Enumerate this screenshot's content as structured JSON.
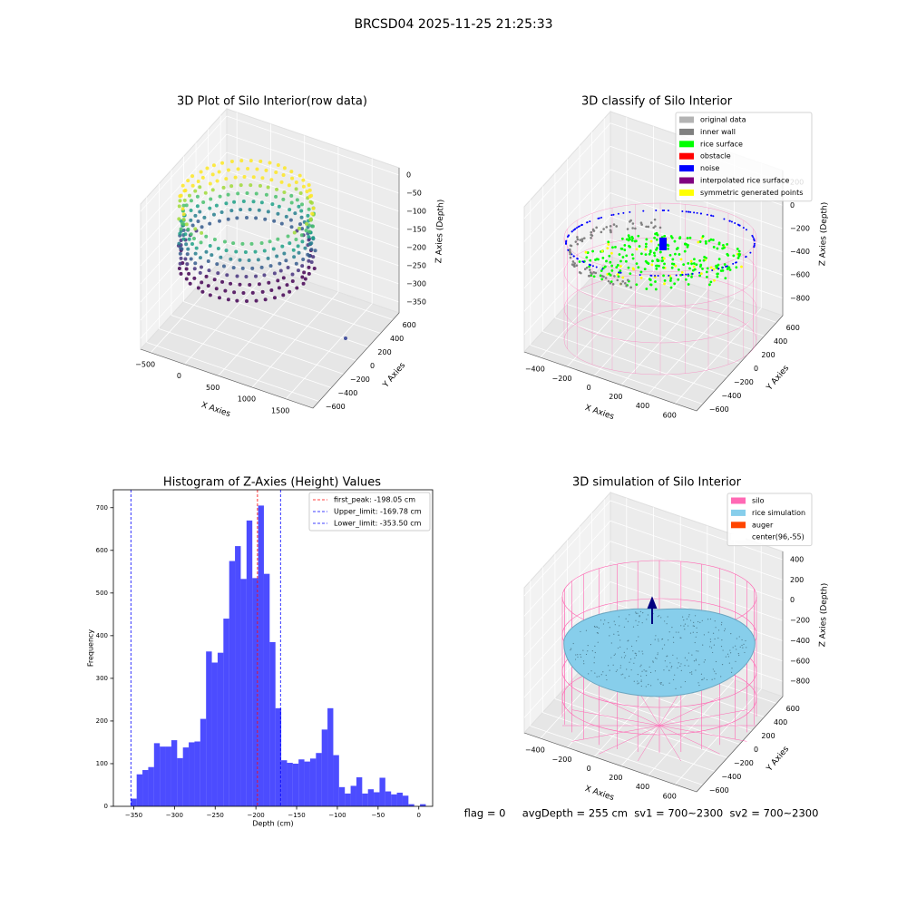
{
  "title": "BRCSD04 2025-11-25 21:25:33",
  "footer": "flag = 0     avgDepth = 255 cm  sv1 = 700~2300  sv2 = 700~2300",
  "chart_data": [
    {
      "type": "scatter3d",
      "title": "3D Plot of Silo Interior(row data)",
      "xlabel": "X Axies",
      "ylabel": "Y Axies",
      "zlabel": "Z Axies (Depth)",
      "xlim": [
        -650,
        1900
      ],
      "ylim": [
        -700,
        700
      ],
      "zlim": [
        -380,
        20
      ],
      "xticks": [
        {
          "value": -500,
          "label": "−500"
        },
        0,
        500,
        1000,
        1500
      ],
      "yticks": [
        {
          "value": -600,
          "label": "−600"
        },
        {
          "value": -400,
          "label": "−400"
        },
        {
          "value": -200,
          "label": "−200"
        },
        0,
        200,
        400,
        600
      ],
      "zticks": [
        0,
        {
          "value": -50,
          "label": "−50"
        },
        {
          "value": -100,
          "label": "−100"
        },
        {
          "value": -150,
          "label": "−150"
        },
        {
          "value": -200,
          "label": "−200"
        },
        {
          "value": -250,
          "label": "−250"
        },
        {
          "value": -300,
          "label": "−300"
        },
        {
          "value": -350,
          "label": "−350"
        }
      ]
    },
    {
      "type": "scatter3d",
      "title": "3D classify of Silo Interior",
      "xlabel": "X Axies",
      "ylabel": "Y Axies",
      "zlabel": "Z Axies (Depth)",
      "xlim": [
        -520,
        760
      ],
      "ylim": [
        -700,
        700
      ],
      "zlim": [
        -950,
        300
      ],
      "xticks": [
        {
          "value": -400,
          "label": "−400"
        },
        {
          "value": -200,
          "label": "−200"
        },
        0,
        200,
        400,
        600
      ],
      "yticks": [
        {
          "value": -600,
          "label": "−600"
        },
        {
          "value": -400,
          "label": "−400"
        },
        {
          "value": -200,
          "label": "−200"
        },
        0,
        200,
        400,
        600
      ],
      "zticks": [
        200,
        0,
        {
          "value": -200,
          "label": "−200"
        },
        {
          "value": -400,
          "label": "−400"
        },
        {
          "value": -600,
          "label": "−600"
        },
        {
          "value": -800,
          "label": "−800"
        }
      ],
      "legend": [
        {
          "name": "original data",
          "color": "#b3b3b3"
        },
        {
          "name": "inner wall",
          "color": "#808080"
        },
        {
          "name": "rice surface",
          "color": "#00ff00"
        },
        {
          "name": "obstacle",
          "color": "#ff0000"
        },
        {
          "name": "noise",
          "color": "#0000ff"
        },
        {
          "name": "interpolated rice surface",
          "color": "#800080"
        },
        {
          "name": "symmetric generated points",
          "color": "#ffff00"
        }
      ]
    },
    {
      "type": "histogram",
      "title": "Histogram of Z-Axies (Height) Values",
      "xlabel": "Depth (cm)",
      "ylabel": "Frequency",
      "color": "#0000ff",
      "bins": [
        -353.5,
        -346.4,
        -339.3,
        -332.2,
        -325.1,
        -318.0,
        -310.9,
        -303.8,
        -296.7,
        -289.6,
        -282.5,
        -275.4,
        -268.3,
        -261.2,
        -254.1,
        -247.0,
        -239.9,
        -232.8,
        -225.7,
        -218.6,
        -211.5,
        -204.4,
        -197.3,
        -190.2,
        -183.1,
        -176.0,
        -168.9,
        -161.8,
        -154.7,
        -147.6,
        -140.5,
        -133.4,
        -126.3,
        -119.2,
        -112.1,
        -105.0,
        -97.9,
        -90.8,
        -83.7,
        -76.6,
        -69.5,
        -62.4,
        -55.3,
        -48.2,
        -41.1,
        -34.0,
        -26.9,
        -19.8,
        -12.7,
        -5.6,
        1.5,
        8.6
      ],
      "values": [
        18,
        75,
        85,
        92,
        148,
        140,
        140,
        155,
        113,
        138,
        150,
        152,
        205,
        363,
        337,
        360,
        440,
        575,
        610,
        533,
        670,
        535,
        705,
        545,
        385,
        230,
        108,
        102,
        100,
        110,
        105,
        112,
        125,
        180,
        230,
        120,
        45,
        30,
        48,
        68,
        30,
        40,
        33,
        67,
        35,
        28,
        32,
        25,
        5,
        0,
        5
      ],
      "xlim": [
        -375,
        17
      ],
      "ylim": [
        0,
        742
      ],
      "xticks": [
        {
          "value": -350,
          "label": "−350"
        },
        {
          "value": -300,
          "label": "−300"
        },
        {
          "value": -250,
          "label": "−250"
        },
        {
          "value": -200,
          "label": "−200"
        },
        {
          "value": -150,
          "label": "−150"
        },
        {
          "value": -100,
          "label": "−100"
        },
        {
          "value": -50,
          "label": "−50"
        },
        0
      ],
      "yticks": [
        0,
        100,
        200,
        300,
        400,
        500,
        600,
        700
      ],
      "lines": [
        {
          "name": "first_peak: -198.05 cm",
          "value": -198.05,
          "color": "#ff0000"
        },
        {
          "name": "Upper_limit: -169.78 cm",
          "value": -169.78,
          "color": "#0000ff"
        },
        {
          "name": "Lower_limit: -353.50 cm",
          "value": -353.5,
          "color": "#0000ff"
        }
      ],
      "legend_position": "upper right"
    },
    {
      "type": "surface3d",
      "title": "3D simulation of Silo Interior",
      "xlabel": "X Axies",
      "ylabel": "Y Axies",
      "zlabel": "Z Axies (Depth)",
      "xlim": [
        -520,
        760
      ],
      "ylim": [
        -700,
        700
      ],
      "zlim": [
        -950,
        480
      ],
      "xticks": [
        {
          "value": -400,
          "label": "−400"
        },
        {
          "value": -200,
          "label": "−200"
        },
        0,
        200,
        400,
        600
      ],
      "yticks": [
        {
          "value": -600,
          "label": "−600"
        },
        {
          "value": -400,
          "label": "−400"
        },
        {
          "value": -200,
          "label": "−200"
        },
        0,
        200,
        400,
        600
      ],
      "zticks": [
        400,
        200,
        0,
        {
          "value": -200,
          "label": "−200"
        },
        {
          "value": -400,
          "label": "−400"
        },
        {
          "value": -600,
          "label": "−600"
        },
        {
          "value": -800,
          "label": "−800"
        }
      ],
      "legend": [
        {
          "name": "silo",
          "color": "#ff69b4"
        },
        {
          "name": "rice simulation",
          "color": "#87ceeb"
        },
        {
          "name": "auger",
          "color": "#ff4500"
        },
        {
          "name": "center(96,-55)",
          "color": "#ffffff"
        }
      ]
    }
  ]
}
